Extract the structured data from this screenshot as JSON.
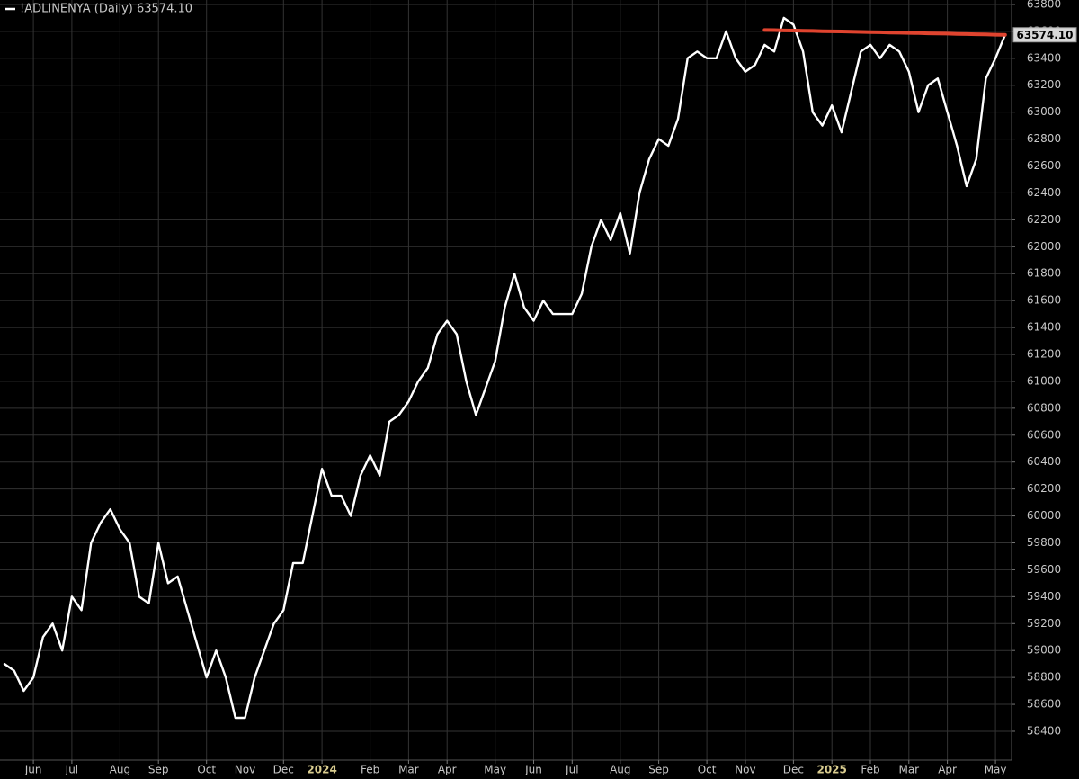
{
  "chart_data": {
    "type": "line",
    "categories": [
      null,
      null,
      null,
      "Jun",
      null,
      null,
      null,
      "Jul",
      null,
      null,
      null,
      null,
      "Aug",
      null,
      null,
      null,
      "Sep",
      null,
      null,
      null,
      null,
      "Oct",
      null,
      null,
      null,
      "Nov",
      null,
      null,
      null,
      "Dec",
      null,
      null,
      null,
      "2024",
      null,
      null,
      null,
      null,
      "Feb",
      null,
      null,
      null,
      "Mar",
      null,
      null,
      null,
      "Apr",
      null,
      null,
      null,
      null,
      "May",
      null,
      null,
      null,
      "Jun",
      null,
      null,
      null,
      "Jul",
      null,
      null,
      null,
      null,
      "Aug",
      null,
      null,
      null,
      "Sep",
      null,
      null,
      null,
      null,
      "Oct",
      null,
      null,
      null,
      "Nov",
      null,
      null,
      null,
      null,
      "Dec",
      null,
      null,
      null,
      "2025",
      null,
      null,
      null,
      "Feb",
      null,
      null,
      null,
      "Mar",
      null,
      null,
      null,
      "Apr",
      null,
      null,
      null,
      null,
      "May",
      null
    ],
    "series": [
      {
        "name": "!ADLINENYA (Daily) 63574.10",
        "color": "#ffffff",
        "last_value_label": "63574.10",
        "values": [
          58900,
          58850,
          58700,
          58800,
          59100,
          59200,
          59000,
          59400,
          59300,
          59800,
          59950,
          60050,
          59900,
          59800,
          59400,
          59350,
          59800,
          59500,
          59550,
          59300,
          59050,
          58800,
          59000,
          58800,
          58500,
          58500,
          58800,
          59000,
          59200,
          59300,
          59650,
          59650,
          60000,
          60350,
          60150,
          60150,
          60000,
          60300,
          60450,
          60300,
          60700,
          60750,
          60850,
          61000,
          61100,
          61350,
          61450,
          61350,
          61000,
          60750,
          60950,
          61150,
          61550,
          61800,
          61550,
          61450,
          61600,
          61500,
          61500,
          61500,
          61650,
          62000,
          62200,
          62050,
          62250,
          61950,
          62400,
          62650,
          62800,
          62750,
          62950,
          63400,
          63450,
          63400,
          63400,
          63600,
          63400,
          63300,
          63350,
          63500,
          63450,
          63700,
          63650,
          63450,
          63000,
          62900,
          63050,
          62850,
          63150,
          63450,
          63500,
          63400,
          63500,
          63450,
          63300,
          63000,
          63200,
          63250,
          63000,
          62750,
          62450,
          62650,
          63250,
          63400,
          63574.1
        ]
      },
      {
        "color": "#e0442f",
        "values": [
          null,
          null,
          null,
          null,
          null,
          null,
          null,
          null,
          null,
          null,
          null,
          null,
          null,
          null,
          null,
          null,
          null,
          null,
          null,
          null,
          null,
          null,
          null,
          null,
          null,
          null,
          null,
          null,
          null,
          null,
          null,
          null,
          null,
          null,
          null,
          null,
          null,
          null,
          null,
          null,
          null,
          null,
          null,
          null,
          null,
          null,
          null,
          null,
          null,
          null,
          null,
          null,
          null,
          null,
          null,
          null,
          null,
          null,
          null,
          null,
          null,
          null,
          null,
          null,
          null,
          null,
          null,
          null,
          null,
          null,
          null,
          null,
          null,
          null,
          null,
          null,
          null,
          null,
          null,
          63610,
          63609,
          63607,
          63606,
          63604,
          63603,
          63601,
          63600,
          63599,
          63597,
          63596,
          63594,
          63593,
          63591,
          63590,
          63588,
          63587,
          63585,
          63584,
          63583,
          63581,
          63580,
          63578,
          63577,
          63575,
          63574.1
        ]
      }
    ],
    "ylim": [
      58186,
      63833
    ],
    "yticks": [
      58400,
      58600,
      58800,
      59000,
      59200,
      59400,
      59600,
      59800,
      60000,
      60200,
      60400,
      60600,
      60800,
      61000,
      61200,
      61400,
      61600,
      61800,
      62000,
      62200,
      62400,
      62600,
      62800,
      63000,
      63200,
      63400,
      63600,
      63800
    ],
    "grid": true
  }
}
